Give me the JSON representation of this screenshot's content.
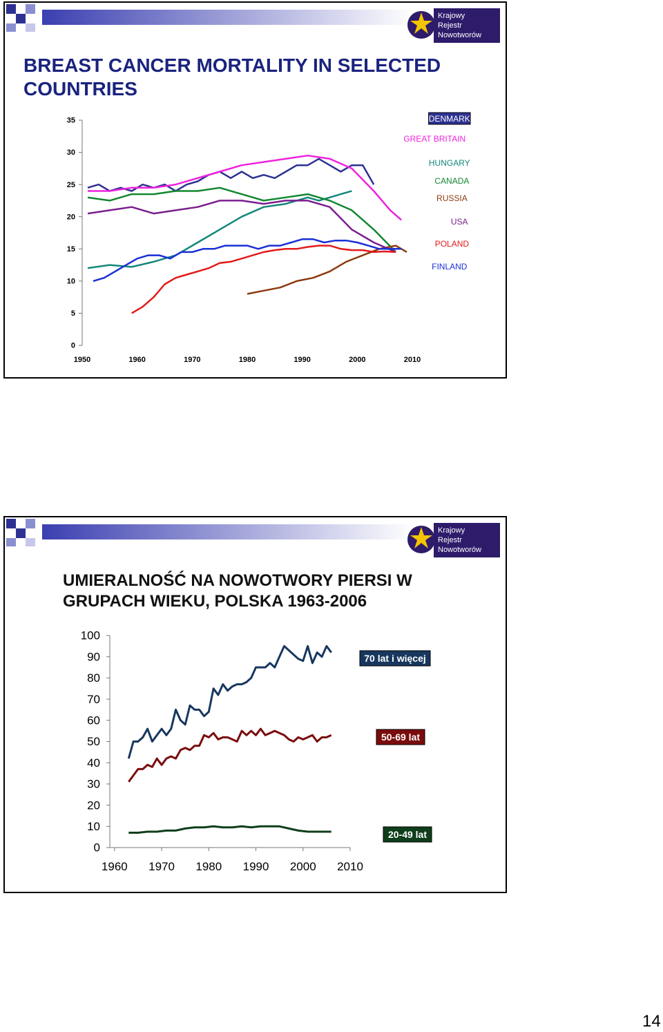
{
  "slides": [
    {
      "title": "BREAST CANCER MORTALITY IN SELECTED COUNTRIES",
      "logo": {
        "lines": [
          "Krajowy",
          "Rejestr",
          "Nowotworów"
        ]
      },
      "chart_data": {
        "type": "line",
        "xlim": [
          1950,
          2010
        ],
        "ylim": [
          0,
          35
        ],
        "x_ticks": [
          "1950",
          "1960",
          "1970",
          "1980",
          "1990",
          "2000",
          "2010"
        ],
        "y_ticks": [
          "0",
          "5",
          "10",
          "15",
          "20",
          "25",
          "30",
          "35"
        ],
        "legend_placement": "right",
        "series": [
          {
            "name": "DENMARK",
            "color": "#2E3192",
            "x": [
              1951,
              1953,
              1955,
              1957,
              1959,
              1961,
              1963,
              1965,
              1967,
              1969,
              1971,
              1973,
              1975,
              1977,
              1979,
              1981,
              1983,
              1985,
              1987,
              1989,
              1991,
              1993,
              1995,
              1997,
              1999,
              2001,
              2003
            ],
            "y": [
              24.5,
              25,
              24,
              24.5,
              24,
              25,
              24.5,
              25,
              24,
              25,
              25.5,
              26.5,
              27,
              26,
              27,
              26,
              26.5,
              26,
              27,
              28,
              28,
              29,
              28,
              27,
              28,
              28,
              25
            ]
          },
          {
            "name": "GREAT BRITAIN",
            "color": "#EE22DD",
            "x": [
              1951,
              1955,
              1959,
              1963,
              1967,
              1971,
              1975,
              1979,
              1983,
              1987,
              1991,
              1995,
              1999,
              2003,
              2006,
              2008
            ],
            "y": [
              24,
              24,
              24.5,
              24.5,
              25,
              26,
              27,
              28,
              28.5,
              29,
              29.5,
              29,
              27.5,
              24,
              21,
              19.5
            ]
          },
          {
            "name": "HUNGARY",
            "color": "#12877A",
            "x": [
              1951,
              1955,
              1959,
              1963,
              1967,
              1971,
              1975,
              1979,
              1983,
              1987,
              1991,
              1993,
              1995,
              1997,
              1999
            ],
            "y": [
              12,
              12.5,
              12.2,
              13,
              14,
              16,
              18,
              20,
              21.5,
              22,
              23,
              22.5,
              23,
              23.5,
              24
            ]
          },
          {
            "name": "CANADA",
            "color": "#128730",
            "x": [
              1951,
              1955,
              1959,
              1963,
              1967,
              1971,
              1975,
              1979,
              1983,
              1987,
              1991,
              1995,
              1999,
              2003,
              2007
            ],
            "y": [
              23,
              22.5,
              23.5,
              23.5,
              24,
              24,
              24.5,
              23.5,
              22.5,
              23,
              23.5,
              22.5,
              21,
              18,
              14.5
            ]
          },
          {
            "name": "RUSSIA",
            "color": "#8B3A0F",
            "x": [
              1980,
              1983,
              1986,
              1989,
              1992,
              1995,
              1998,
              2001,
              2004,
              2007,
              2009
            ],
            "y": [
              8,
              8.5,
              9,
              10,
              10.5,
              11.5,
              13,
              14,
              15,
              15.5,
              14.5
            ]
          },
          {
            "name": "USA",
            "color": "#7A1E8E",
            "x": [
              1951,
              1955,
              1959,
              1963,
              1967,
              1971,
              1975,
              1979,
              1983,
              1987,
              1991,
              1995,
              1999,
              2003,
              2007
            ],
            "y": [
              20.5,
              21,
              21.5,
              20.5,
              21,
              21.5,
              22.5,
              22.5,
              22,
              22.5,
              22.5,
              21.5,
              18,
              16,
              14.5
            ]
          },
          {
            "name": "POLAND",
            "color": "#E21A1A",
            "x": [
              1959,
              1961,
              1963,
              1965,
              1967,
              1969,
              1971,
              1973,
              1975,
              1977,
              1979,
              1981,
              1983,
              1985,
              1987,
              1989,
              1991,
              1993,
              1995,
              1997,
              1999,
              2001,
              2003,
              2005,
              2007
            ],
            "y": [
              5,
              6,
              7.5,
              9.5,
              10.5,
              11,
              11.5,
              12,
              12.8,
              13,
              13.5,
              14,
              14.5,
              14.8,
              15,
              15,
              15.3,
              15.5,
              15.5,
              15,
              14.8,
              14.8,
              14.5,
              14.6,
              14.5
            ]
          },
          {
            "name": "FINLAND",
            "color": "#1A2FD6",
            "x": [
              1952,
              1954,
              1956,
              1958,
              1960,
              1962,
              1964,
              1966,
              1968,
              1970,
              1972,
              1974,
              1976,
              1978,
              1980,
              1982,
              1984,
              1986,
              1988,
              1990,
              1992,
              1994,
              1996,
              1998,
              2000,
              2002,
              2004,
              2006,
              2008
            ],
            "y": [
              10,
              10.5,
              11.5,
              12.5,
              13.5,
              14,
              14,
              13.5,
              14.5,
              14.5,
              15,
              15,
              15.5,
              15.5,
              15.5,
              15,
              15.5,
              15.5,
              16,
              16.5,
              16.5,
              16,
              16.3,
              16.3,
              16,
              15.5,
              15,
              15,
              15
            ]
          }
        ]
      }
    },
    {
      "title": "UMIERALNOŚĆ NA NOWOTWORY PIERSI W GRUPACH WIEKU, POLSKA 1963-2006",
      "logo": {
        "lines": [
          "Krajowy",
          "Rejestr",
          "Nowotworów"
        ]
      },
      "chart_data": {
        "type": "line",
        "xlim": [
          1959,
          2010
        ],
        "ylim": [
          0,
          100
        ],
        "x_ticks": [
          "1960",
          "1970",
          "1980",
          "1990",
          "2000",
          "2010"
        ],
        "y_ticks": [
          "0",
          "10",
          "20",
          "30",
          "40",
          "50",
          "60",
          "70",
          "80",
          "90",
          "100"
        ],
        "legend_placement": "right",
        "series": [
          {
            "name": "70 lat i więcej",
            "color": "#17375E",
            "x": [
              1963,
              1964,
              1965,
              1966,
              1967,
              1968,
              1969,
              1970,
              1971,
              1972,
              1973,
              1974,
              1975,
              1976,
              1977,
              1978,
              1979,
              1980,
              1981,
              1982,
              1983,
              1984,
              1985,
              1986,
              1987,
              1988,
              1989,
              1990,
              1991,
              1992,
              1993,
              1994,
              1995,
              1996,
              1997,
              1998,
              1999,
              2000,
              2001,
              2002,
              2003,
              2004,
              2005,
              2006
            ],
            "y": [
              42,
              50,
              50,
              52,
              56,
              50,
              53,
              56,
              53,
              56,
              65,
              60,
              58,
              67,
              65,
              65,
              62,
              64,
              75,
              72,
              77,
              74,
              76,
              77,
              77,
              78,
              80,
              85,
              85,
              85,
              87,
              85,
              90,
              95,
              93,
              91,
              89,
              88,
              95,
              87,
              92,
              90,
              95,
              92
            ]
          },
          {
            "name": "50-69 lat",
            "color": "#7A0C0C",
            "x": [
              1963,
              1964,
              1965,
              1966,
              1967,
              1968,
              1969,
              1970,
              1971,
              1972,
              1973,
              1974,
              1975,
              1976,
              1977,
              1978,
              1979,
              1980,
              1981,
              1982,
              1983,
              1984,
              1985,
              1986,
              1987,
              1988,
              1989,
              1990,
              1991,
              1992,
              1993,
              1994,
              1995,
              1996,
              1997,
              1998,
              1999,
              2000,
              2001,
              2002,
              2003,
              2004,
              2005,
              2006
            ],
            "y": [
              31,
              34,
              37,
              37,
              39,
              38,
              42,
              39,
              42,
              43,
              42,
              46,
              47,
              46,
              48,
              48,
              53,
              52,
              54,
              51,
              52,
              52,
              51,
              50,
              55,
              53,
              55,
              53,
              56,
              53,
              54,
              55,
              54,
              53,
              51,
              50,
              52,
              51,
              52,
              53,
              50,
              52,
              52,
              53
            ]
          },
          {
            "name": "20-49 lat",
            "color": "#0F3E1A",
            "x": [
              1963,
              1965,
              1967,
              1969,
              1971,
              1973,
              1975,
              1977,
              1979,
              1981,
              1983,
              1985,
              1987,
              1989,
              1991,
              1993,
              1995,
              1997,
              1999,
              2001,
              2003,
              2005,
              2006
            ],
            "y": [
              7,
              7,
              7.5,
              7.5,
              8,
              8,
              9,
              9.5,
              9.5,
              10,
              9.5,
              9.5,
              10,
              9.5,
              10,
              10,
              10,
              9,
              8,
              7.5,
              7.5,
              7.5,
              7.5
            ]
          }
        ]
      }
    }
  ],
  "page_number": "14"
}
